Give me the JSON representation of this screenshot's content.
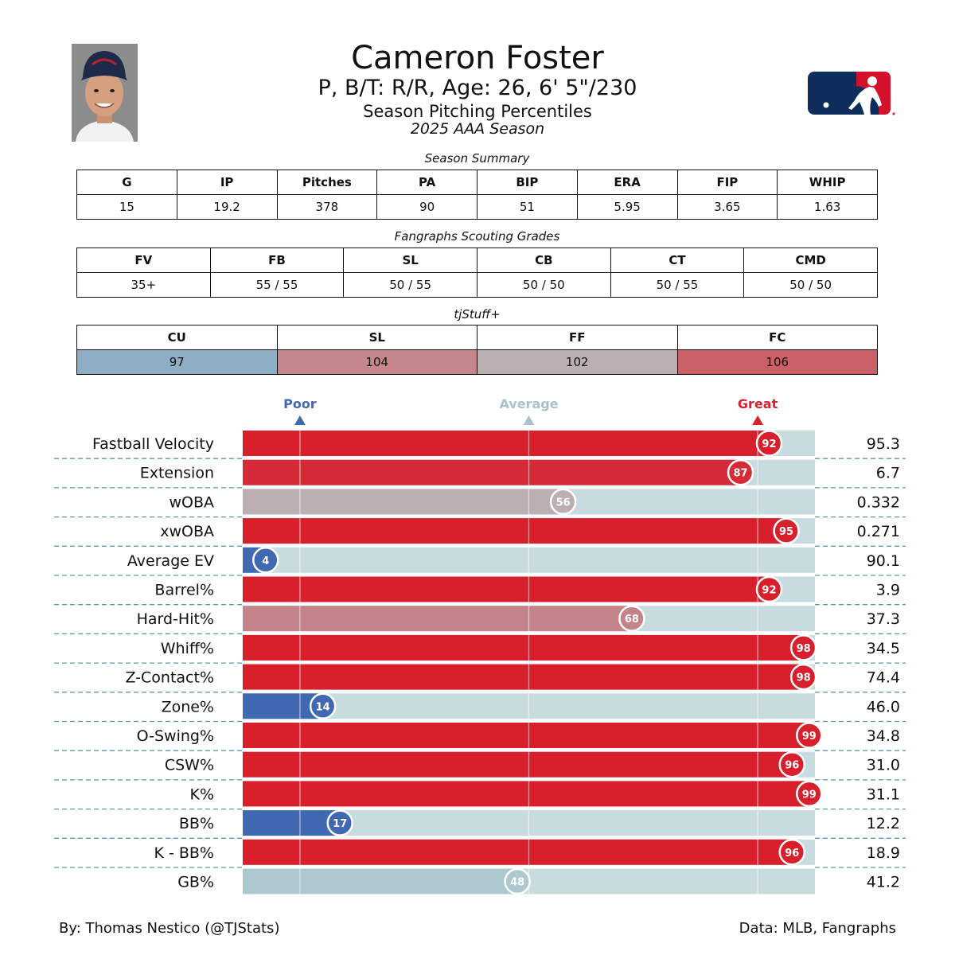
{
  "header": {
    "name": "Cameron Foster",
    "bio": "P, B/T: R/R, Age: 26, 6' 5\"/230",
    "title": "Season Pitching Percentiles",
    "season": "2025 AAA Season"
  },
  "season_summary": {
    "title": "Season Summary",
    "headers": [
      "G",
      "IP",
      "Pitches",
      "PA",
      "BIP",
      "ERA",
      "FIP",
      "WHIP"
    ],
    "values": [
      "15",
      "19.2",
      "378",
      "90",
      "51",
      "5.95",
      "3.65",
      "1.63"
    ]
  },
  "scouting": {
    "title": "Fangraphs Scouting Grades",
    "headers": [
      "FV",
      "FB",
      "SL",
      "CB",
      "CT",
      "CMD"
    ],
    "values": [
      "35+",
      "55 / 55",
      "50 / 55",
      "50 / 50",
      "50 / 55",
      "50 / 50"
    ]
  },
  "tjstuff": {
    "title": "tjStuff+",
    "headers": [
      "CU",
      "SL",
      "FF",
      "FC"
    ],
    "values": [
      "97",
      "104",
      "102",
      "106"
    ],
    "colors": [
      "#8eaec6",
      "#c4888c",
      "#bbafb2",
      "#cc6069"
    ]
  },
  "chart_data": {
    "type": "bar",
    "orientation": "horizontal",
    "xlim": [
      0,
      100
    ],
    "markers": [
      {
        "label": "Poor",
        "value": 10,
        "color": "#4169b1"
      },
      {
        "label": "Average",
        "value": 50,
        "color": "#a9c2cc"
      },
      {
        "label": "Great",
        "value": 90,
        "color": "#d62131"
      }
    ],
    "categories": [
      "Fastball Velocity",
      "Extension",
      "wOBA",
      "xwOBA",
      "Average EV",
      "Barrel%",
      "Hard-Hit%",
      "Whiff%",
      "Z-Contact%",
      "Zone%",
      "O-Swing%",
      "CSW%",
      "K%",
      "BB%",
      "K - BB%",
      "GB%"
    ],
    "percentiles": [
      92,
      87,
      56,
      95,
      4,
      92,
      68,
      98,
      98,
      14,
      99,
      96,
      99,
      17,
      96,
      48
    ],
    "stat_values": [
      "95.3",
      "6.7",
      "0.332",
      "0.271",
      "90.1",
      "3.9",
      "37.3",
      "34.5",
      "74.4",
      "46.0",
      "34.8",
      "31.0",
      "31.1",
      "12.2",
      "18.9",
      "41.2"
    ],
    "bar_colors": [
      "#d81f2c",
      "#d52b37",
      "#bbafb2",
      "#d81f2c",
      "#4169b1",
      "#d81f2c",
      "#c4838a",
      "#d81f2c",
      "#d81f2c",
      "#4169b1",
      "#d81f2c",
      "#d81f2c",
      "#d81f2c",
      "#4169b1",
      "#d81f2c",
      "#adc8cf"
    ],
    "track_color": "#c8dcdf"
  },
  "footer": {
    "credit": "By: Thomas Nestico (@TJStats)",
    "source": "Data: MLB, Fangraphs"
  }
}
